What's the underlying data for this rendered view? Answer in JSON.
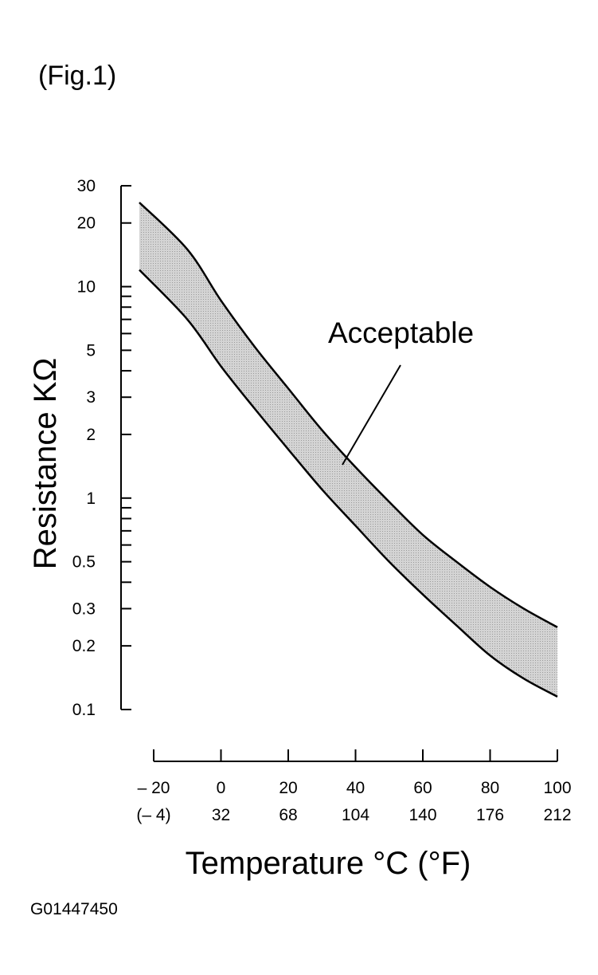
{
  "figure_label": "(Fig.1)",
  "image_code": "G01447450",
  "colors": {
    "line": "#000000",
    "band_fill": "#d4d4d4",
    "background": "#ffffff"
  },
  "chart_data": {
    "type": "area",
    "title": "",
    "xlabel": "Temperature °C (°F)",
    "ylabel": "Resistance KΩ",
    "y_scale": "log",
    "ylim": [
      0.1,
      30
    ],
    "xlim": [
      -20,
      100
    ],
    "grid": false,
    "y_ticks_labeled": [
      "0.1",
      "0.2",
      "0.3",
      "0.5",
      "1",
      "2",
      "3",
      "5",
      "10",
      "20",
      "30"
    ],
    "y_ticks_minor": [
      0.4,
      0.6,
      0.7,
      0.8,
      0.9,
      4,
      6,
      7,
      8,
      9
    ],
    "x_ticks": [
      {
        "c": "– 20",
        "f": "(– 4)"
      },
      {
        "c": "0",
        "f": "32"
      },
      {
        "c": "20",
        "f": "68"
      },
      {
        "c": "40",
        "f": "104"
      },
      {
        "c": "60",
        "f": "140"
      },
      {
        "c": "80",
        "f": "176"
      },
      {
        "c": "100",
        "f": "212"
      }
    ],
    "annotation": "Acceptable",
    "series": [
      {
        "x": [
          -20,
          -10,
          0,
          10,
          20,
          30,
          40,
          50,
          60,
          70,
          80,
          90,
          100
        ],
        "values": [
          25,
          15,
          8.6,
          5.2,
          3.3,
          2.1,
          1.4,
          0.96,
          0.67,
          0.5,
          0.38,
          0.3,
          0.245
        ]
      },
      {
        "x": [
          -20,
          -10,
          0,
          10,
          20,
          30,
          40,
          50,
          60,
          70,
          80,
          90,
          100
        ],
        "values": [
          12,
          7,
          4.2,
          2.65,
          1.7,
          1.1,
          0.74,
          0.5,
          0.35,
          0.25,
          0.18,
          0.14,
          0.115
        ]
      }
    ]
  }
}
